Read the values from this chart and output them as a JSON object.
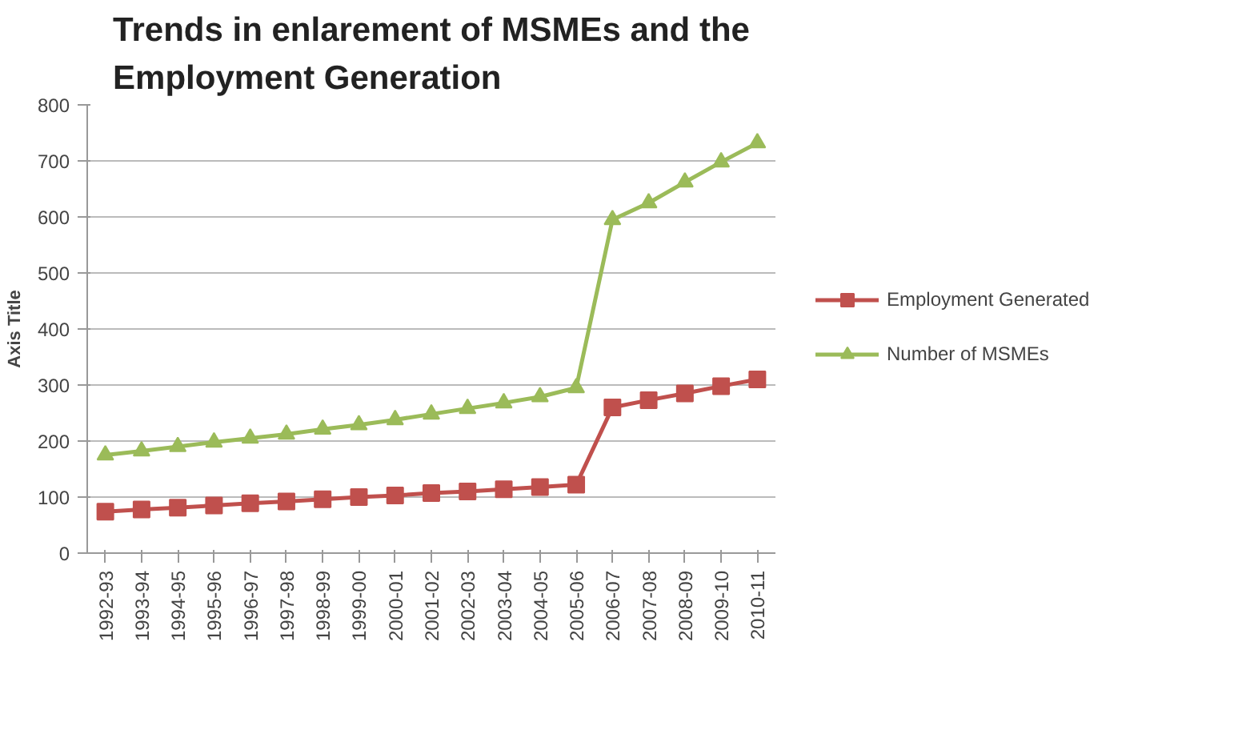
{
  "chart_data": {
    "type": "line",
    "title": "Trends in enlarement of MSMEs and the\nEmployment Generation",
    "ylabel": "Axis Title",
    "categories": [
      "1992-93",
      "1993-94",
      "1994-95",
      "1995-96",
      "1996-97",
      "1997-98",
      "1998-99",
      "1999-00",
      "2000-01",
      "2001-02",
      "2002-03",
      "2003-04",
      "2004-05",
      "2005-06",
      "2006-07",
      "2007-08",
      "2008-09",
      "2009-10",
      "2010-11"
    ],
    "series": [
      {
        "name": "Employment Generated",
        "color": "#c0504d",
        "marker": "square",
        "values": [
          74,
          78,
          81,
          85,
          89,
          92,
          96,
          100,
          103,
          107,
          110,
          114,
          118,
          122,
          260,
          273,
          285,
          298,
          310
        ]
      },
      {
        "name": "Number of MSMEs",
        "color": "#9bbb59",
        "marker": "triangle",
        "values": [
          175,
          182,
          190,
          198,
          205,
          212,
          221,
          229,
          238,
          248,
          258,
          268,
          279,
          295,
          595,
          625,
          662,
          698,
          732
        ]
      }
    ],
    "ylim": [
      0,
      800
    ],
    "yticks": [
      0,
      100,
      200,
      300,
      400,
      500,
      600,
      700,
      800
    ],
    "grid": "y",
    "legend": "right"
  }
}
